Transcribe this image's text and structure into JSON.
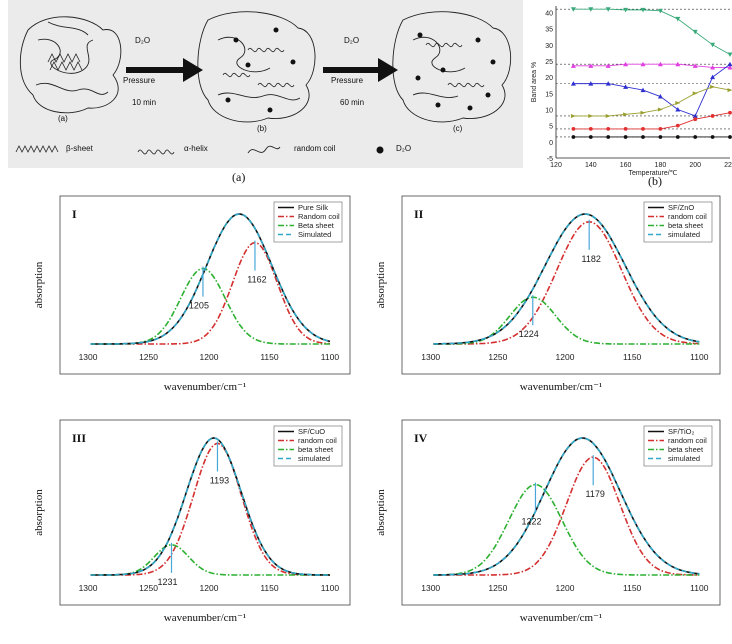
{
  "figure_top": {
    "panel_a_caption": "(a)",
    "panel_b_caption": "(b)",
    "steps": [
      {
        "label": "(a)"
      },
      {
        "label": "(b)"
      },
      {
        "label": "(c)"
      }
    ],
    "arrows": [
      {
        "top": "D₂O",
        "mid": "Pressure",
        "bottom": "10 min"
      },
      {
        "top": "D₂O",
        "mid": "Pressure",
        "bottom": "60 min"
      }
    ],
    "legend": {
      "beta": "β-sheet",
      "alpha": "α-helix",
      "coil": "random coil",
      "d2o": "D₂O"
    }
  },
  "chart_data": [
    {
      "id": "b",
      "type": "line",
      "title": "",
      "xlabel": "Temperature/℃",
      "ylabel": "Band area %",
      "xlim": [
        120,
        220
      ],
      "ylim": [
        -5,
        42
      ],
      "xticks": [
        "120",
        "140",
        "160",
        "180",
        "200",
        "220"
      ],
      "yticks": [
        "-5",
        "0",
        "5",
        "10",
        "15",
        "20",
        "25",
        "30",
        "35",
        "40"
      ],
      "series": [
        {
          "color": "#3aaa7a",
          "x": [
            130,
            140,
            150,
            160,
            170,
            180,
            190,
            200,
            210,
            220
          ],
          "y": [
            41,
            41,
            41,
            40.8,
            40.8,
            40.5,
            38,
            34,
            30,
            27
          ]
        },
        {
          "color": "#e040e0",
          "x": [
            130,
            140,
            150,
            160,
            170,
            180,
            190,
            200,
            210,
            220
          ],
          "y": [
            23.5,
            23.5,
            23.5,
            24,
            24,
            24,
            24,
            23.5,
            23,
            23
          ]
        },
        {
          "color": "#3030d0",
          "x": [
            130,
            140,
            150,
            160,
            170,
            180,
            190,
            200,
            210,
            220
          ],
          "y": [
            18,
            18,
            18,
            17,
            16,
            14,
            10,
            8,
            20,
            24
          ]
        },
        {
          "color": "#9aa030",
          "x": [
            130,
            140,
            150,
            160,
            170,
            180,
            190,
            200,
            210,
            220
          ],
          "y": [
            8,
            8,
            8,
            8.5,
            9,
            10,
            12,
            15,
            17,
            16
          ]
        },
        {
          "color": "#e03030",
          "x": [
            130,
            140,
            150,
            160,
            170,
            180,
            190,
            200,
            210,
            220
          ],
          "y": [
            4,
            4,
            4,
            4,
            4,
            4,
            5,
            7,
            8,
            9
          ]
        },
        {
          "color": "#111111",
          "x": [
            130,
            140,
            150,
            160,
            170,
            180,
            190,
            200,
            210,
            220
          ],
          "y": [
            1.5,
            1.5,
            1.5,
            1.5,
            1.5,
            1.5,
            1.5,
            1.5,
            1.5,
            1.5
          ]
        }
      ],
      "hlines": [
        41,
        24,
        18,
        8,
        4,
        1.5
      ]
    },
    {
      "id": "I",
      "type": "line",
      "roman": "I",
      "xlabel": "wavenumber/cm⁻¹",
      "ylabel": "absorption",
      "xlim": [
        1305,
        1095
      ],
      "xticks": [
        "1300",
        "1250",
        "1200",
        "1150",
        "1100"
      ],
      "legend": [
        "Pure Silk",
        "Random coil",
        "Beta sheet",
        "Simulated"
      ],
      "peaks": {
        "total": 1175,
        "coil": 1162,
        "beta": 1205
      },
      "labels": [
        "1205",
        "1162"
      ],
      "amp": {
        "total": 1.0,
        "coil": 0.78,
        "beta": 0.58
      },
      "width": {
        "total": 38,
        "coil": 26,
        "beta": 26
      }
    },
    {
      "id": "II",
      "type": "line",
      "roman": "II",
      "xlabel": "wavenumber/cm⁻¹",
      "ylabel": "absorption",
      "xlim": [
        1305,
        1095
      ],
      "xticks": [
        "1300",
        "1250",
        "1200",
        "1150",
        "1100"
      ],
      "legend": [
        "SF/ZnO",
        "random coil",
        "beta sheet",
        "simulated"
      ],
      "peaks": {
        "total": 1185,
        "coil": 1182,
        "beta": 1224
      },
      "labels": [
        "1182",
        "1224"
      ],
      "amp": {
        "total": 1.0,
        "coil": 0.94,
        "beta": 0.36
      },
      "width": {
        "total": 42,
        "coil": 34,
        "beta": 24
      }
    },
    {
      "id": "III",
      "type": "line",
      "roman": "III",
      "xlabel": "wavenumber/cm⁻¹",
      "ylabel": "absorption",
      "xlim": [
        1305,
        1095
      ],
      "xticks": [
        "1300",
        "1250",
        "1200",
        "1150",
        "1100"
      ],
      "legend": [
        "SF/CuO",
        "random coil",
        "beta sheet",
        "simulated"
      ],
      "peaks": {
        "total": 1196,
        "coil": 1193,
        "beta": 1231
      },
      "labels": [
        "1193",
        "1231"
      ],
      "amp": {
        "total": 1.0,
        "coil": 0.96,
        "beta": 0.22
      },
      "width": {
        "total": 32,
        "coil": 28,
        "beta": 20
      }
    },
    {
      "id": "IV",
      "type": "line",
      "roman": "IV",
      "xlabel": "wavenumber/cm⁻¹",
      "ylabel": "absorption",
      "xlim": [
        1305,
        1095
      ],
      "xticks": [
        "1300",
        "1250",
        "1200",
        "1150",
        "1100"
      ],
      "legend": [
        "SF/TiO₂",
        "random coil",
        "beta sheet",
        "simulated"
      ],
      "peaks": {
        "total": 1187,
        "coil": 1179,
        "beta": 1222
      },
      "labels": [
        "1179",
        "1222"
      ],
      "amp": {
        "total": 1.0,
        "coil": 0.86,
        "beta": 0.66
      },
      "width": {
        "total": 40,
        "coil": 28,
        "beta": 28
      }
    }
  ],
  "colors": {
    "total": "#111111",
    "coil": "#d43030",
    "beta": "#2cb030",
    "sim": "#30a8c8",
    "marker": "#4aa8d8"
  }
}
